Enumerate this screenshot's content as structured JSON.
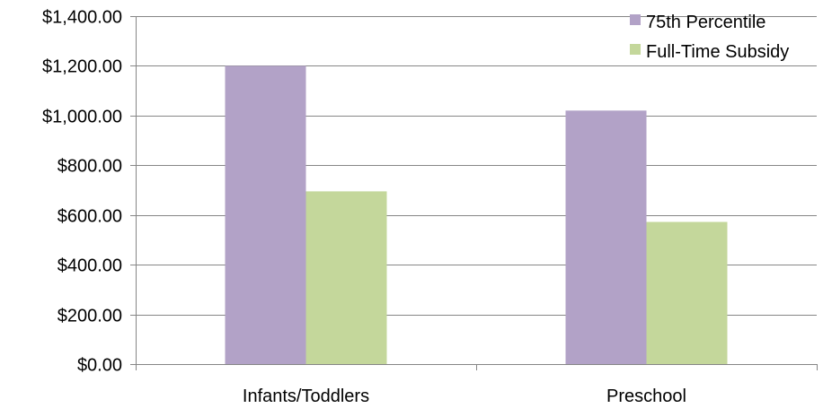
{
  "chart_data": {
    "type": "bar",
    "title": "",
    "xlabel": "",
    "ylabel": "",
    "categories": [
      "Infants/Toddlers",
      "Preschool"
    ],
    "series": [
      {
        "name": "75th Percentile",
        "color": "#b2a2c7",
        "values": [
          1200,
          1020
        ]
      },
      {
        "name": "Full-Time Subsidy",
        "color": "#c4d79b",
        "values": [
          695,
          572
        ]
      }
    ],
    "ylim": [
      0,
      1400
    ],
    "y_tick_values": [
      0,
      200,
      400,
      600,
      800,
      1000,
      1200,
      1400
    ],
    "y_tick_labels": [
      "$0.00",
      "$200.00",
      "$400.00",
      "$600.00",
      "$800.00",
      "$1,000.00",
      "$1,200.00",
      "$1,400.00"
    ],
    "grid": true,
    "legend_position": "top-right"
  }
}
